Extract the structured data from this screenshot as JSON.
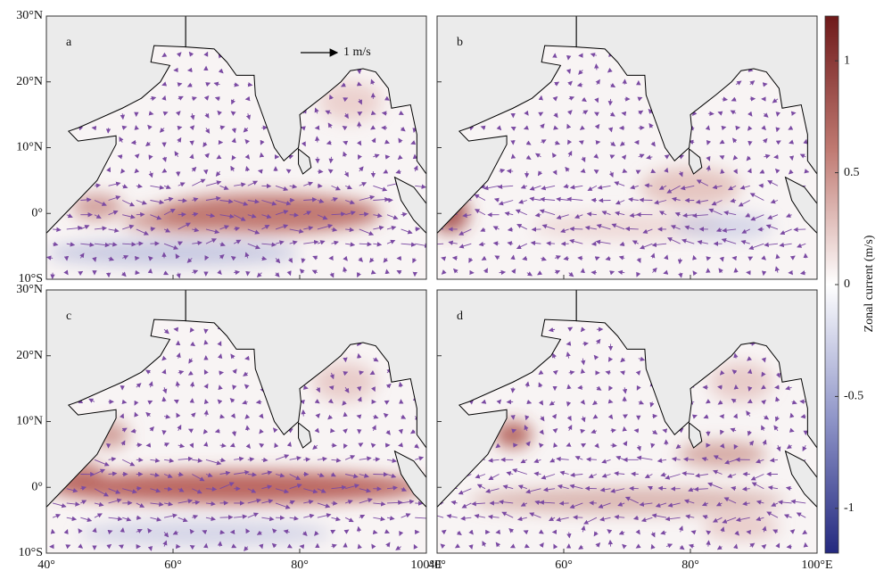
{
  "map": {
    "panels": [
      {
        "label": "a"
      },
      {
        "label": "b"
      },
      {
        "label": "c"
      },
      {
        "label": "d"
      }
    ],
    "xlim": [
      40,
      100
    ],
    "ylim": [
      -10,
      30
    ],
    "xticks": [
      {
        "value": 40,
        "label": "40°"
      },
      {
        "value": 60,
        "label": "60°"
      },
      {
        "value": 80,
        "label": "80°"
      },
      {
        "value": 100,
        "label": "100°E"
      }
    ],
    "yticks": [
      {
        "value": 30,
        "label": "30°N"
      },
      {
        "value": 20,
        "label": "20°N"
      },
      {
        "value": 10,
        "label": "10°N"
      },
      {
        "value": 0,
        "label": "0°"
      },
      {
        "value": -10,
        "label": "10°S"
      }
    ],
    "scale_label": "1 m/s",
    "colorbar": {
      "label": "Zonal current (m/s)",
      "lim": [
        -1.2,
        1.2
      ],
      "ticks": [
        1,
        0.5,
        0,
        -0.5,
        -1
      ]
    }
  }
}
